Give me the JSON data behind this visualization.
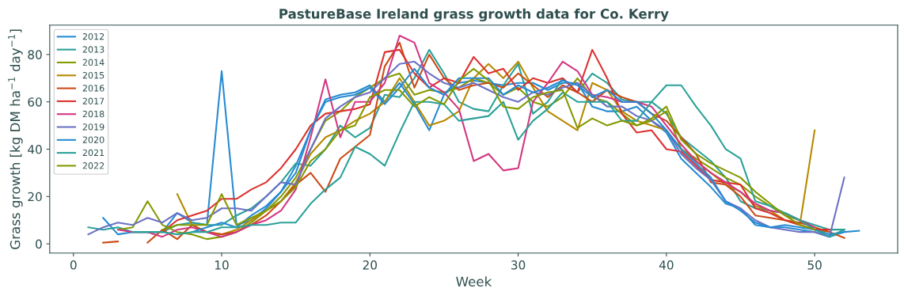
{
  "chart_data": {
    "type": "line",
    "title": "PastureBase Ireland grass growth data for Co. Kerry",
    "xlabel": "Week",
    "ylabel": "Grass growth [kg DM ha$^{−1}$ day$^{−1}$]",
    "x": [
      1,
      2,
      3,
      4,
      5,
      6,
      7,
      8,
      9,
      10,
      11,
      12,
      13,
      14,
      15,
      16,
      17,
      18,
      19,
      20,
      21,
      22,
      23,
      24,
      25,
      26,
      27,
      28,
      29,
      30,
      31,
      32,
      33,
      34,
      35,
      36,
      37,
      38,
      39,
      40,
      41,
      42,
      43,
      44,
      45,
      46,
      47,
      48,
      49,
      50,
      51,
      52,
      53
    ],
    "xlim": [
      -1.6,
      55.6
    ],
    "xticks": [
      0,
      10,
      20,
      30,
      40,
      50
    ],
    "ylim": [
      -3.9,
      92.4
    ],
    "yticks": [
      0,
      20,
      40,
      60,
      80
    ],
    "grid": false,
    "legend": "top left",
    "marker": "none",
    "line_style": "solid",
    "series": [
      {
        "name": "2012",
        "color": "#268bd2",
        "values": [
          null,
          11,
          4,
          5,
          5,
          5,
          13,
          9,
          8,
          73,
          8,
          10,
          15,
          22,
          33,
          48,
          61,
          63,
          64,
          67,
          60,
          68,
          59,
          48,
          63,
          68,
          69,
          68,
          67,
          68,
          68,
          65,
          68,
          68,
          58,
          56,
          56,
          58,
          52,
          47,
          36,
          30,
          24,
          17,
          15,
          8,
          7,
          7,
          6,
          5,
          3,
          5,
          null
        ]
      },
      {
        "name": "2013",
        "color": "#2aa198",
        "values": [
          7,
          6,
          7,
          5,
          5,
          5,
          8,
          9,
          8,
          8,
          12,
          15,
          20,
          26,
          34,
          33,
          40,
          50,
          45,
          49,
          63,
          62,
          70,
          82,
          72,
          60,
          57,
          56,
          67,
          76,
          55,
          60,
          70,
          64,
          72,
          68,
          61,
          60,
          60,
          55,
          45,
          40,
          35,
          28,
          18,
          15,
          14,
          13,
          10,
          8,
          6,
          6,
          null
        ]
      },
      {
        "name": "2014",
        "color": "#859900",
        "values": [
          null,
          null,
          6,
          7,
          18,
          8,
          5,
          4,
          2,
          3,
          5,
          9,
          14,
          20,
          28,
          40,
          52,
          56,
          62,
          66,
          70,
          72,
          63,
          65,
          64,
          66,
          70,
          68,
          63,
          66,
          60,
          58,
          62,
          70,
          62,
          60,
          55,
          50,
          52,
          56,
          40,
          36,
          32,
          28,
          25,
          20,
          16,
          12,
          10,
          6,
          5,
          null,
          null
        ]
      },
      {
        "name": "2015",
        "color": "#b58900",
        "values": [
          null,
          null,
          null,
          null,
          null,
          null,
          21,
          8,
          5,
          4,
          6,
          10,
          14,
          18,
          26,
          38,
          45,
          48,
          52,
          55,
          60,
          70,
          60,
          50,
          52,
          56,
          70,
          76,
          70,
          77,
          66,
          56,
          52,
          48,
          68,
          65,
          56,
          52,
          50,
          48,
          40,
          35,
          30,
          25,
          22,
          16,
          14,
          10,
          8,
          48,
          null,
          null,
          null
        ]
      },
      {
        "name": "2016",
        "color": "#cb4b16",
        "values": [
          null,
          0.5,
          1,
          null,
          0.5,
          6,
          2,
          8,
          5,
          4,
          5,
          8,
          12,
          18,
          25,
          30,
          22,
          36,
          41,
          46,
          75,
          85,
          66,
          80,
          70,
          65,
          67,
          68,
          66,
          72,
          67,
          62,
          67,
          64,
          60,
          65,
          62,
          60,
          55,
          52,
          45,
          38,
          26,
          25,
          20,
          12,
          11,
          10,
          9,
          7,
          5,
          2.5,
          null
        ]
      },
      {
        "name": "2017",
        "color": "#dc322f",
        "values": [
          null,
          null,
          null,
          null,
          null,
          5,
          10,
          12,
          14,
          19,
          19,
          23,
          26,
          32,
          40,
          50,
          55,
          56,
          57,
          59,
          81,
          82,
          72,
          66,
          70,
          68,
          79,
          72,
          74,
          65,
          70,
          68,
          70,
          64,
          82,
          70,
          55,
          47,
          48,
          40,
          39,
          33,
          27,
          26,
          25,
          15,
          13,
          10,
          8,
          6,
          6,
          null,
          null
        ]
      },
      {
        "name": "2018",
        "color": "#d33682",
        "values": [
          null,
          null,
          6,
          5,
          5,
          3,
          6,
          7,
          5,
          3,
          5,
          8,
          10,
          14,
          23,
          45,
          69.5,
          45,
          60,
          60,
          68,
          88,
          85,
          68,
          64,
          57,
          35,
          38,
          31,
          32,
          60,
          68,
          77,
          73,
          63,
          62,
          60,
          60,
          58,
          50,
          42,
          35,
          30,
          26,
          22,
          17,
          14,
          13,
          10,
          7,
          null,
          null,
          null
        ]
      },
      {
        "name": "2019",
        "color": "#6c71c4",
        "values": [
          4,
          7,
          9,
          8,
          11,
          9,
          13,
          10,
          11,
          15,
          15,
          14,
          20,
          26,
          25,
          40,
          53,
          58,
          62,
          64,
          70,
          76,
          77,
          72,
          68,
          66,
          68,
          65,
          62,
          60,
          64,
          63,
          66,
          68,
          63,
          58,
          58,
          54,
          52,
          48,
          38,
          32,
          27,
          18,
          15,
          10,
          7,
          6,
          5,
          5,
          3,
          28,
          null
        ]
      },
      {
        "name": "2020",
        "color": "#268bd2",
        "values": [
          null,
          null,
          null,
          null,
          null,
          null,
          null,
          5,
          7,
          9,
          7,
          12,
          16,
          22,
          30,
          48,
          60,
          62,
          63,
          66,
          59,
          66,
          74,
          66,
          63,
          70,
          70,
          70,
          63,
          67,
          64,
          66,
          69,
          67,
          62,
          65,
          60,
          60,
          55,
          48,
          40,
          34,
          28,
          18,
          14,
          9,
          7,
          8,
          7,
          6,
          4,
          5,
          5.5
        ]
      },
      {
        "name": "2021",
        "color": "#2aa198",
        "values": [
          null,
          null,
          null,
          5,
          5,
          5,
          4,
          5,
          5,
          7,
          7,
          8,
          8,
          9,
          9,
          17,
          23,
          28,
          41,
          38,
          33,
          47,
          60,
          60,
          59,
          52,
          53,
          54,
          60,
          44,
          52,
          57,
          64,
          60,
          60,
          60,
          52,
          52,
          60,
          67,
          67,
          58,
          50,
          40,
          36,
          18,
          16,
          13,
          10,
          6,
          3,
          6,
          null
        ]
      },
      {
        "name": "2022",
        "color": "#859900",
        "values": [
          null,
          null,
          null,
          null,
          null,
          6,
          8,
          8,
          8,
          21,
          8,
          11,
          14,
          18,
          24,
          35,
          40,
          48,
          50,
          62,
          65,
          65,
          58,
          62,
          59,
          69,
          74,
          69,
          58,
          57,
          62,
          64,
          65,
          49,
          53,
          50,
          52,
          50,
          53,
          58,
          44,
          38,
          34,
          31,
          28,
          22,
          17,
          12,
          8,
          6,
          null,
          null,
          null
        ]
      }
    ]
  }
}
